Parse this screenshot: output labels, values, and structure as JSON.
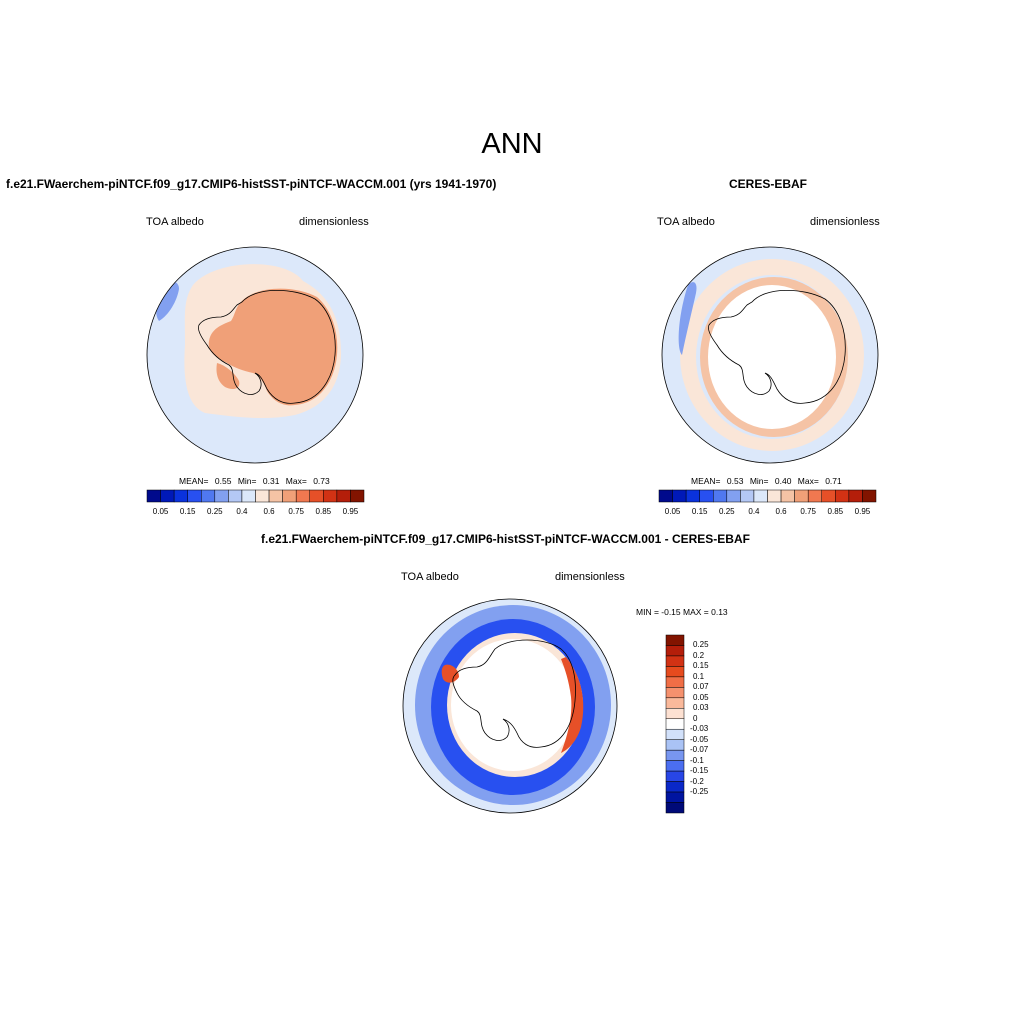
{
  "main_title": "ANN",
  "panels": {
    "model": {
      "case_title": "f.e21.FWaerchem-piNTCF.f09_g17.CMIP6-histSST-piNTCF-WACCM.001 (yrs 1941-1970)",
      "left_label": "TOA albedo",
      "right_label": "dimensionless",
      "stats": {
        "mean_label": "MEAN=",
        "mean": "0.55",
        "min_label": "Min=",
        "min": "0.31",
        "max_label": "Max=",
        "max": "0.73"
      }
    },
    "obs": {
      "case_title": "CERES-EBAF",
      "left_label": "TOA albedo",
      "right_label": "dimensionless",
      "stats": {
        "mean_label": "MEAN=",
        "mean": "0.53",
        "min_label": "Min=",
        "min": "0.40",
        "max_label": "Max=",
        "max": "0.71"
      }
    },
    "diff": {
      "case_title": "f.e21.FWaerchem-piNTCF.f09_g17.CMIP6-histSST-piNTCF-WACCM.001 - CERES-EBAF",
      "left_label": "TOA albedo",
      "right_label": "dimensionless",
      "minmax": "MIN =  -0.15 MAX =   0.13"
    }
  },
  "colorbar_abs": {
    "ticks": [
      "0.05",
      "0.15",
      "0.25",
      "0.4",
      "0.6",
      "0.75",
      "0.85",
      "0.95"
    ],
    "colors": [
      "#000a8c",
      "#0019b8",
      "#0a32dc",
      "#2850f0",
      "#5078f0",
      "#82a0f0",
      "#b4c8f5",
      "#dce8fa",
      "#fae6d8",
      "#f5c3a5",
      "#f0a078",
      "#f07850",
      "#e65028",
      "#d23214",
      "#b41e0a",
      "#821400"
    ]
  },
  "colorbar_diff": {
    "ticks": [
      "0.25",
      "0.2",
      "0.15",
      "0.1",
      "0.07",
      "0.05",
      "0.03",
      "0",
      "-0.03",
      "-0.05",
      "-0.07",
      "-0.1",
      "-0.15",
      "-0.2",
      "-0.25"
    ],
    "colors": [
      "#821400",
      "#b41e0a",
      "#d23214",
      "#e64b1e",
      "#f06e46",
      "#f5916e",
      "#fab99b",
      "#fde1d2",
      "#ffffff",
      "#d2e1fa",
      "#aac3f5",
      "#7896f0",
      "#4b6ef0",
      "#2846e6",
      "#0a28c8",
      "#0014a0",
      "#000a78"
    ]
  },
  "map_colors": {
    "ocean_light": "#dce8fa",
    "pale_orange": "#fae6d8",
    "mid_orange": "#f5c3a5",
    "salmon": "#f0a078",
    "blue_mid": "#5078f0",
    "blue_strong": "#2850f0",
    "blue_light": "#82a0f0",
    "red_strong": "#e65028",
    "coast": "#000000"
  }
}
